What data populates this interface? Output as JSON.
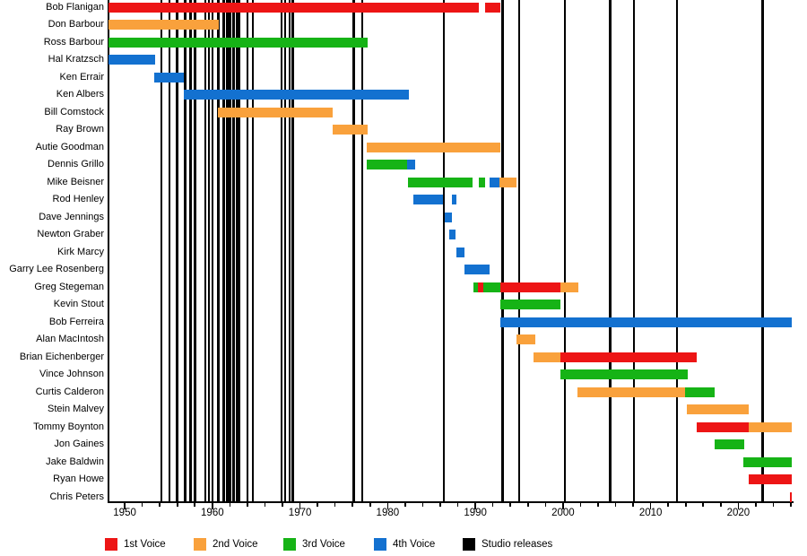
{
  "chart_data": {
    "type": "timeline-gantt",
    "description_visible_text_only": true,
    "x_axis": {
      "min": 1948.15,
      "max": 2026.2,
      "tick_start": 1950,
      "minor_tick_interval": 2,
      "major_tick_interval": 10,
      "tick_labels": [
        "1950",
        "1960",
        "1970",
        "1980",
        "1990",
        "2000",
        "2010",
        "2020"
      ]
    },
    "voice_colors": {
      "1st": "#ed1515",
      "2nd": "#f9a13c",
      "3rd": "#16b316",
      "4th": "#1371d0"
    },
    "studio_release_color": "#000000",
    "legend": [
      {
        "key": "1st",
        "label": "1st Voice",
        "color": "#ed1515"
      },
      {
        "key": "2nd",
        "label": "2nd Voice",
        "color": "#f9a13c"
      },
      {
        "key": "3rd",
        "label": "3rd Voice",
        "color": "#16b316"
      },
      {
        "key": "4th",
        "label": "4th Voice",
        "color": "#1371d0"
      },
      {
        "key": "studio",
        "label": "Studio releases",
        "color": "#000000"
      }
    ],
    "members": [
      {
        "name": "Bob Flanigan",
        "segments": [
          {
            "start": 1948.2,
            "end": 1990.4,
            "voice": "1st"
          },
          {
            "start": 1991.1,
            "end": 1992.9,
            "voice": "1st"
          }
        ]
      },
      {
        "name": "Don Barbour",
        "segments": [
          {
            "start": 1948.2,
            "end": 1960.7,
            "voice": "2nd"
          }
        ]
      },
      {
        "name": "Ross Barbour",
        "segments": [
          {
            "start": 1948.2,
            "end": 1977.7,
            "voice": "3rd"
          }
        ]
      },
      {
        "name": "Hal Kratzsch",
        "segments": [
          {
            "start": 1948.2,
            "end": 1953.5,
            "voice": "4th"
          }
        ]
      },
      {
        "name": "Ken Errair",
        "segments": [
          {
            "start": 1953.4,
            "end": 1956.7,
            "voice": "4th"
          }
        ]
      },
      {
        "name": "Ken Albers",
        "segments": [
          {
            "start": 1956.7,
            "end": 1982.4,
            "voice": "4th"
          }
        ]
      },
      {
        "name": "Bill Comstock",
        "segments": [
          {
            "start": 1960.6,
            "end": 1973.7,
            "voice": "2nd"
          }
        ]
      },
      {
        "name": "Ray Brown",
        "segments": [
          {
            "start": 1973.7,
            "end": 1977.7,
            "voice": "2nd"
          }
        ]
      },
      {
        "name": "Autie Goodman",
        "segments": [
          {
            "start": 1977.6,
            "end": 1992.9,
            "voice": "2nd"
          }
        ]
      },
      {
        "name": "Dennis Grillo",
        "segments": [
          {
            "start": 1977.6,
            "end": 1982.2,
            "voice": "3rd"
          },
          {
            "start": 1982.2,
            "end": 1983.1,
            "voice": "4th"
          }
        ]
      },
      {
        "name": "Mike Beisner",
        "segments": [
          {
            "start": 1982.3,
            "end": 1989.7,
            "voice": "3rd"
          },
          {
            "start": 1990.4,
            "end": 1991.1,
            "voice": "3rd"
          },
          {
            "start": 1991.6,
            "end": 1992.7,
            "voice": "4th"
          },
          {
            "start": 1992.7,
            "end": 1994.7,
            "voice": "2nd"
          }
        ]
      },
      {
        "name": "Rod Henley",
        "segments": [
          {
            "start": 1982.9,
            "end": 1986.3,
            "voice": "4th"
          },
          {
            "start": 1987.3,
            "end": 1987.8,
            "voice": "4th"
          }
        ]
      },
      {
        "name": "Dave Jennings",
        "segments": [
          {
            "start": 1986.5,
            "end": 1987.3,
            "voice": "4th"
          }
        ]
      },
      {
        "name": "Newton Graber",
        "segments": [
          {
            "start": 1987.0,
            "end": 1987.7,
            "voice": "4th"
          }
        ]
      },
      {
        "name": "Kirk Marcy",
        "segments": [
          {
            "start": 1987.8,
            "end": 1988.8,
            "voice": "4th"
          }
        ]
      },
      {
        "name": "Garry Lee Rosenberg",
        "segments": [
          {
            "start": 1988.8,
            "end": 1991.6,
            "voice": "4th"
          }
        ]
      },
      {
        "name": "Greg Stegeman",
        "segments": [
          {
            "start": 1989.8,
            "end": 1990.3,
            "voice": "3rd"
          },
          {
            "start": 1990.3,
            "end": 1990.9,
            "voice": "1st"
          },
          {
            "start": 1990.9,
            "end": 1992.9,
            "voice": "3rd"
          },
          {
            "start": 1992.9,
            "end": 1999.7,
            "voice": "1st"
          },
          {
            "start": 1999.7,
            "end": 2001.8,
            "voice": "2nd"
          }
        ]
      },
      {
        "name": "Kevin Stout",
        "segments": [
          {
            "start": 1992.9,
            "end": 1999.7,
            "voice": "3rd"
          }
        ]
      },
      {
        "name": "Bob Ferreira",
        "segments": [
          {
            "start": 1992.9,
            "end": 2026.1,
            "voice": "4th"
          }
        ]
      },
      {
        "name": "Alan MacIntosh",
        "segments": [
          {
            "start": 1994.7,
            "end": 1996.8,
            "voice": "2nd"
          }
        ]
      },
      {
        "name": "Brian Eichenberger",
        "segments": [
          {
            "start": 1996.6,
            "end": 1999.7,
            "voice": "2nd"
          },
          {
            "start": 1999.7,
            "end": 2015.3,
            "voice": "1st"
          }
        ]
      },
      {
        "name": "Vince Johnson",
        "segments": [
          {
            "start": 1999.7,
            "end": 2014.2,
            "voice": "3rd"
          }
        ]
      },
      {
        "name": "Curtis Calderon",
        "segments": [
          {
            "start": 2001.7,
            "end": 2013.9,
            "voice": "2nd"
          },
          {
            "start": 2013.9,
            "end": 2017.3,
            "voice": "3rd"
          }
        ]
      },
      {
        "name": "Stein Malvey",
        "segments": [
          {
            "start": 2014.1,
            "end": 2021.2,
            "voice": "2nd"
          }
        ]
      },
      {
        "name": "Tommy Boynton",
        "segments": [
          {
            "start": 2015.3,
            "end": 2021.2,
            "voice": "1st"
          },
          {
            "start": 2021.2,
            "end": 2026.1,
            "voice": "2nd"
          }
        ]
      },
      {
        "name": "Jon Gaines",
        "segments": [
          {
            "start": 2017.3,
            "end": 2020.7,
            "voice": "3rd"
          }
        ]
      },
      {
        "name": "Jake Baldwin",
        "segments": [
          {
            "start": 2020.6,
            "end": 2026.1,
            "voice": "3rd"
          }
        ]
      },
      {
        "name": "Ryan Howe",
        "segments": [
          {
            "start": 2021.2,
            "end": 2026.1,
            "voice": "1st"
          }
        ]
      },
      {
        "name": "Chris Peters",
        "segments": [
          {
            "start": 2025.9,
            "end": 2026.1,
            "voice": "1st"
          }
        ]
      }
    ],
    "studio_releases": [
      1954.2,
      1955.1,
      1956.0,
      1956.9,
      1957.5,
      1958.0,
      1959.2,
      1959.6,
      1960.0,
      1960.7,
      1961.3,
      1961.7,
      1962.0,
      1962.4,
      1962.8,
      1963.1,
      1964.0,
      1964.6,
      1967.9,
      1968.3,
      1968.8,
      1969.2,
      1976.1,
      1977.1,
      1986.4,
      1993.1,
      1995.0,
      2000.2,
      2005.4,
      2008.1,
      2013.0,
      2022.8
    ]
  }
}
